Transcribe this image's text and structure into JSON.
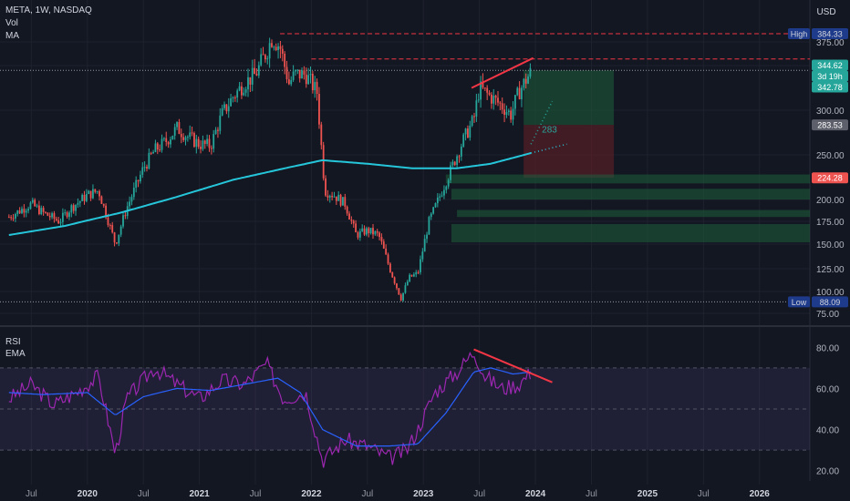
{
  "header": {
    "symbol": "META, 1W, NASDAQ",
    "indicators": [
      "Vol",
      "MA"
    ],
    "currency": "USD"
  },
  "rsi_panel": {
    "labels": [
      "RSI",
      "EMA"
    ],
    "ticks": [
      "80.00",
      "60.00",
      "40.00",
      "20.00"
    ]
  },
  "colors": {
    "background": "#131722",
    "up": "#26a69a",
    "down": "#ef5350",
    "ma": "#26c6da",
    "rsi": "#9c27b0",
    "rsi_ema": "#2962ff",
    "trendline": "#f23645",
    "target_zone": "#1e5e3c",
    "stop_zone": "#5c1f27"
  },
  "chart_data": [
    {
      "type": "candlestick",
      "title": "META, 1W, NASDAQ",
      "x_ticks": [
        "Jul",
        "2020",
        "Jul",
        "2021",
        "Jul",
        "2022",
        "Jul",
        "2023",
        "Jul",
        "2024",
        "Jul",
        "2025",
        "Jul",
        "2026"
      ],
      "y_ticks": [
        "375.00",
        "350.00",
        "300.00",
        "250.00",
        "200.00",
        "175.00",
        "150.00",
        "125.00",
        "100.00",
        "75.00"
      ],
      "ylim": [
        70,
        395
      ],
      "price_badges": [
        {
          "label": "High",
          "value": "384.33"
        },
        {
          "label": "",
          "value": "344.62"
        },
        {
          "label": "",
          "value": "3d 19h"
        },
        {
          "label": "",
          "value": "342.78"
        },
        {
          "label": "",
          "value": "283.53"
        },
        {
          "label": "",
          "value": "224.28"
        },
        {
          "label": "Low",
          "value": "88.09"
        }
      ],
      "annotation": "283",
      "price_path": [
        [
          2019.3,
          180
        ],
        [
          2019.5,
          195
        ],
        [
          2019.6,
          185
        ],
        [
          2019.75,
          175
        ],
        [
          2019.85,
          190
        ],
        [
          2020.0,
          205
        ],
        [
          2020.1,
          210
        ],
        [
          2020.2,
          170
        ],
        [
          2020.25,
          150
        ],
        [
          2020.35,
          190
        ],
        [
          2020.5,
          235
        ],
        [
          2020.6,
          255
        ],
        [
          2020.7,
          265
        ],
        [
          2020.8,
          280
        ],
        [
          2020.9,
          270
        ],
        [
          2021.0,
          262
        ],
        [
          2021.1,
          260
        ],
        [
          2021.2,
          295
        ],
        [
          2021.3,
          315
        ],
        [
          2021.4,
          330
        ],
        [
          2021.5,
          340
        ],
        [
          2021.6,
          365
        ],
        [
          2021.65,
          380
        ],
        [
          2021.72,
          370
        ],
        [
          2021.8,
          330
        ],
        [
          2021.85,
          340
        ],
        [
          2021.95,
          340
        ],
        [
          2022.05,
          320
        ],
        [
          2022.12,
          210
        ],
        [
          2022.2,
          205
        ],
        [
          2022.3,
          195
        ],
        [
          2022.4,
          160
        ],
        [
          2022.5,
          165
        ],
        [
          2022.6,
          160
        ],
        [
          2022.7,
          125
        ],
        [
          2022.8,
          92
        ],
        [
          2022.87,
          115
        ],
        [
          2022.95,
          120
        ],
        [
          2023.05,
          175
        ],
        [
          2023.15,
          205
        ],
        [
          2023.25,
          235
        ],
        [
          2023.35,
          265
        ],
        [
          2023.45,
          290
        ],
        [
          2023.5,
          325
        ],
        [
          2023.6,
          315
        ],
        [
          2023.7,
          305
        ],
        [
          2023.78,
          295
        ],
        [
          2023.85,
          320
        ],
        [
          2023.92,
          335
        ],
        [
          2023.96,
          343
        ]
      ],
      "moving_average": [
        [
          2019.3,
          160
        ],
        [
          2019.8,
          170
        ],
        [
          2020.3,
          185
        ],
        [
          2020.8,
          203
        ],
        [
          2021.3,
          222
        ],
        [
          2021.8,
          236
        ],
        [
          2022.1,
          244
        ],
        [
          2022.5,
          240
        ],
        [
          2022.9,
          235
        ],
        [
          2023.3,
          235
        ],
        [
          2023.6,
          240
        ],
        [
          2023.96,
          252
        ]
      ]
    },
    {
      "type": "line",
      "title": "RSI",
      "ylim": [
        15,
        85
      ],
      "series": [
        {
          "name": "RSI",
          "values": [
            [
              2019.3,
              55
            ],
            [
              2019.5,
              62
            ],
            [
              2019.7,
              52
            ],
            [
              2019.9,
              58
            ],
            [
              2020.1,
              66
            ],
            [
              2020.25,
              28
            ],
            [
              2020.35,
              55
            ],
            [
              2020.6,
              70
            ],
            [
              2020.8,
              62
            ],
            [
              2021.0,
              55
            ],
            [
              2021.2,
              64
            ],
            [
              2021.4,
              62
            ],
            [
              2021.6,
              72
            ],
            [
              2021.75,
              55
            ],
            [
              2021.95,
              58
            ],
            [
              2022.1,
              25
            ],
            [
              2022.3,
              35
            ],
            [
              2022.5,
              32
            ],
            [
              2022.7,
              26
            ],
            [
              2022.85,
              30
            ],
            [
              2022.95,
              40
            ],
            [
              2023.1,
              58
            ],
            [
              2023.3,
              68
            ],
            [
              2023.45,
              78
            ],
            [
              2023.55,
              66
            ],
            [
              2023.7,
              60
            ],
            [
              2023.85,
              62
            ],
            [
              2023.96,
              68
            ]
          ]
        },
        {
          "name": "EMA",
          "values": [
            [
              2019.3,
              58
            ],
            [
              2019.6,
              57
            ],
            [
              2020.0,
              58
            ],
            [
              2020.25,
              47
            ],
            [
              2020.5,
              56
            ],
            [
              2020.8,
              60
            ],
            [
              2021.1,
              59
            ],
            [
              2021.4,
              62
            ],
            [
              2021.7,
              65
            ],
            [
              2021.9,
              58
            ],
            [
              2022.1,
              40
            ],
            [
              2022.4,
              32
            ],
            [
              2022.7,
              32
            ],
            [
              2022.95,
              33
            ],
            [
              2023.2,
              48
            ],
            [
              2023.45,
              68
            ],
            [
              2023.6,
              70
            ],
            [
              2023.8,
              67
            ],
            [
              2023.96,
              68
            ]
          ]
        }
      ]
    }
  ]
}
